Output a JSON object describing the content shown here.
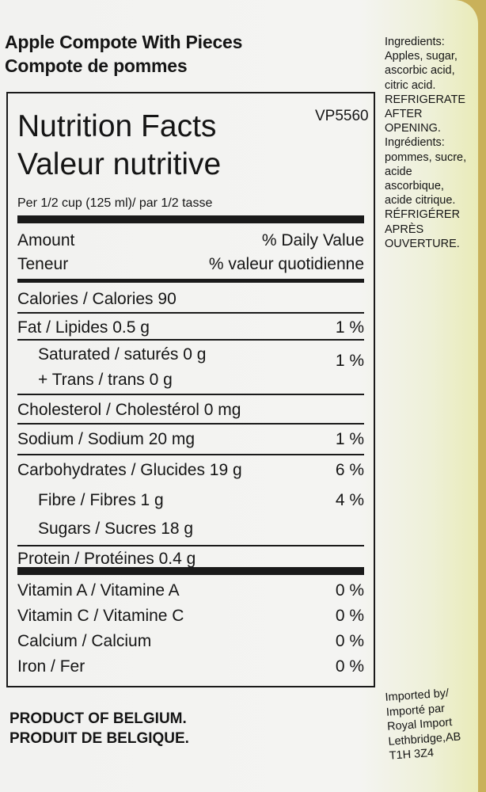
{
  "product": {
    "name_en": "Apple Compote With Pieces",
    "name_fr": "Compote de pommes"
  },
  "nutrition": {
    "title_en": "Nutrition Facts",
    "title_fr": "Valeur nutritive",
    "code": "VP5560",
    "serving": "Per 1/2 cup (125 ml)/ par 1/2 tasse",
    "amount_en": "Amount",
    "dv_en": "% Daily Value",
    "amount_fr": "Teneur",
    "dv_fr": "% valeur quotidienne",
    "rows": [
      {
        "label": "Calories / Calories 90",
        "pct": ""
      },
      {
        "label": "Fat / Lipides 0.5 g",
        "pct": "1 %"
      },
      {
        "label": "Saturated / saturés 0 g",
        "pct": "1 %"
      },
      {
        "label": "+ Trans / trans 0 g",
        "pct": ""
      },
      {
        "label": "Cholesterol / Cholestérol 0 mg",
        "pct": ""
      },
      {
        "label": "Sodium / Sodium 20 mg",
        "pct": "1 %"
      },
      {
        "label": "Carbohydrates / Glucides 19 g",
        "pct": "6 %"
      },
      {
        "label": "Fibre / Fibres 1 g",
        "pct": "4 %"
      },
      {
        "label": "Sugars / Sucres 18 g",
        "pct": ""
      },
      {
        "label": "Protein / Protéines 0.4 g",
        "pct": ""
      },
      {
        "label": "Vitamin A / Vitamine A",
        "pct": "0 %"
      },
      {
        "label": "Vitamin C / Vitamine C",
        "pct": "0 %"
      },
      {
        "label": "Calcium / Calcium",
        "pct": "0 %"
      },
      {
        "label": "Iron / Fer",
        "pct": "0 %"
      }
    ]
  },
  "ingredients": [
    "Ingredients:",
    "Apples, sugar,",
    "ascorbic acid,",
    "citric acid.",
    "REFRIGERATE",
    "AFTER",
    "OPENING.",
    "Ingrédients:",
    "pommes, sucre,",
    "acide",
    "ascorbique,",
    "acide citrique.",
    "RÉFRIGÉRER",
    "APRÈS",
    "OUVERTURE."
  ],
  "origin": {
    "en": "PRODUCT OF BELGIUM.",
    "fr": "PRODUIT DE BELGIQUE."
  },
  "importer": [
    "Imported by/",
    "Importé par",
    "Royal Import",
    "Lethbridge,AB",
    "T1H 3Z4"
  ]
}
